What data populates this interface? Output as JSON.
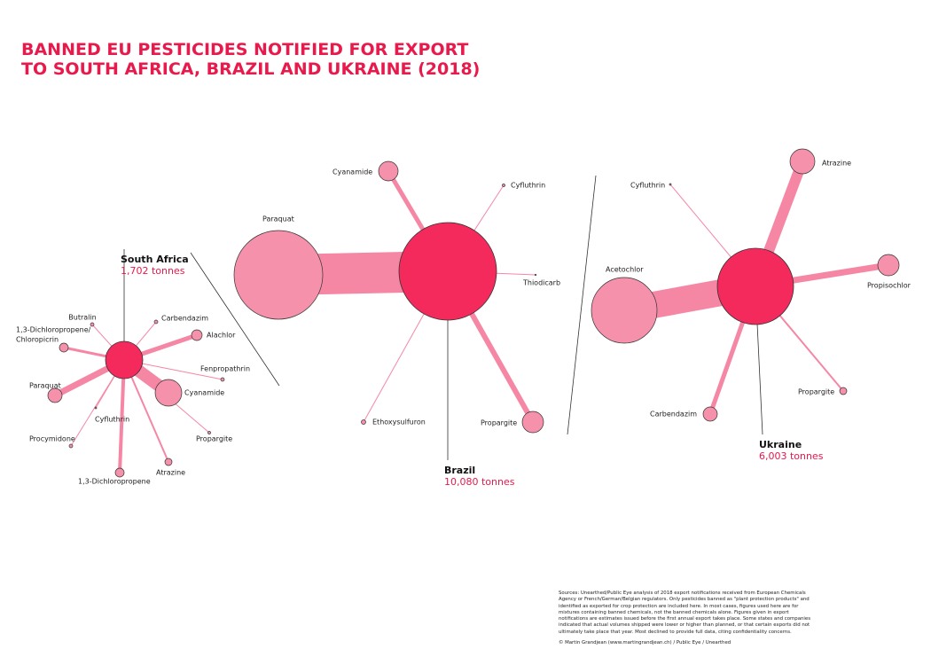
{
  "title": [
    "BANNED EU PESTICIDES NOTIFIED FOR EXPORT",
    "TO SOUTH AFRICA, BRAZIL AND UKRAINE (2018)"
  ],
  "countries": [
    {
      "name": "South Africa",
      "total": "1,702 tonnes",
      "pesticides": [
        {
          "name": "Butralin"
        },
        {
          "name": [
            "1,3-Dichloropropene/",
            "Chloropicrin"
          ]
        },
        {
          "name": "Carbendazim"
        },
        {
          "name": "Alachlor"
        },
        {
          "name": "Fenpropathrin"
        },
        {
          "name": "Cyanamide"
        },
        {
          "name": "Propargite"
        },
        {
          "name": "Atrazine"
        },
        {
          "name": "1,3-Dichloropropene"
        },
        {
          "name": "Procymidone"
        },
        {
          "name": "Cyfluthrin"
        },
        {
          "name": "Paraquat"
        }
      ]
    },
    {
      "name": "Brazil",
      "total": "10,080 tonnes",
      "pesticides": [
        {
          "name": "Cyanamide"
        },
        {
          "name": "Cyfluthrin"
        },
        {
          "name": "Paraquat"
        },
        {
          "name": "Thiodicarb"
        },
        {
          "name": "Propargite"
        },
        {
          "name": "Ethoxysulfuron"
        }
      ]
    },
    {
      "name": "Ukraine",
      "total": "6,003 tonnes",
      "pesticides": [
        {
          "name": "Atrazine"
        },
        {
          "name": "Cyfluthrin"
        },
        {
          "name": "Propisochlor"
        },
        {
          "name": "Acetochlor"
        },
        {
          "name": "Propargite"
        },
        {
          "name": "Carbendazim"
        }
      ]
    }
  ],
  "sources": "Sources: Unearthed/Public Eye analysis of 2018 export notifications received from European Chemicals Agency or French/German/Belgian regulators. Only pesticides banned as \"plant protection products\" and identified as exported for crop protection are included here. In most cases, figures used here are for mixtures containing banned chemicals, not the banned chemicals alone. Figures given in export notifications are estimates issued before the first annual export takes place. Some states and companies indicated that actual volumes shipped were lower or higher than planned, or that certain exports did not ultimately take place that year. Most declined to provide full data, citing confidentiality concerns.",
  "credit": "© Martin Grandjean (www.martingrandjean.ch) / Public Eye / Unearthed"
}
